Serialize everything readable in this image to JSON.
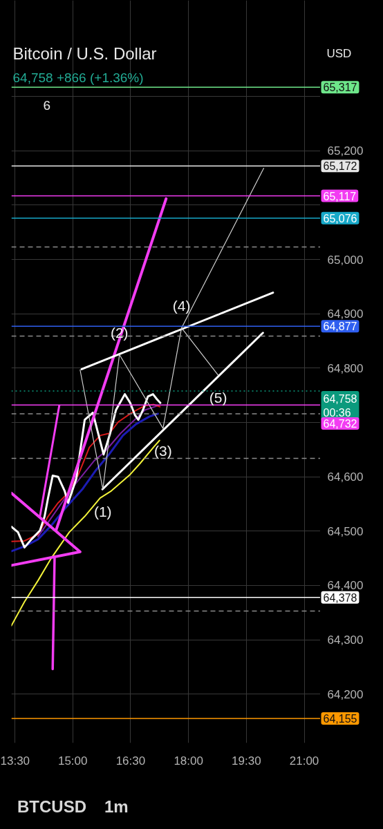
{
  "chart_data": {
    "type": "line",
    "title": "Bitcoin / U.S. Dollar",
    "subtitle": "64,758  +866 (+1.36%)",
    "annotations": [
      "6",
      "USD",
      "BTCUSD",
      "1m",
      {
        "text": "(1)",
        "x": 15.78,
        "y": 64577
      },
      {
        "text": "(2)",
        "x": 16.21,
        "y": 64825
      },
      {
        "text": "(3)",
        "x": 17.34,
        "y": 64689
      },
      {
        "text": "(4)",
        "x": 17.82,
        "y": 64874
      },
      {
        "text": "(5)",
        "x": 18.77,
        "y": 64787
      }
    ],
    "xlim": [
      13.41,
      21.42
    ],
    "xticks": [
      {
        "value": 13.5,
        "label": "13:30"
      },
      {
        "value": 15,
        "label": "15:00"
      },
      {
        "value": 16.5,
        "label": "16:30"
      },
      {
        "value": 18,
        "label": "18:00"
      },
      {
        "value": 19.5,
        "label": "19:30"
      },
      {
        "value": 21,
        "label": "21:00"
      }
    ],
    "ylim": [
      64110,
      65477
    ],
    "yticks": [
      {
        "value": 64200,
        "label": "64,200"
      },
      {
        "value": 64300,
        "label": "64,300"
      },
      {
        "value": 64400,
        "label": "64,400"
      },
      {
        "value": 64500,
        "label": "64,500"
      },
      {
        "value": 64600,
        "label": "64,600"
      },
      {
        "value": 64700,
        "label": null
      },
      {
        "value": 64800,
        "label": "64,800"
      },
      {
        "value": 64900,
        "label": "64,900"
      },
      {
        "value": 65000,
        "label": "65,000"
      },
      {
        "value": 65100,
        "label": null
      },
      {
        "value": 65200,
        "label": "65,200"
      },
      {
        "value": 65300,
        "label": null
      }
    ],
    "grid": true,
    "line_style": "solid",
    "series": [
      {
        "color": "#f2f23a",
        "x": [
          13.41,
          13.75,
          14.1,
          14.45,
          14.91,
          15.31,
          15.71,
          16.0,
          16.47,
          16.75,
          17.09,
          17.25
        ],
        "values": [
          64326,
          64370,
          64409,
          64451,
          64498,
          64527,
          64561,
          64574,
          64603,
          64625,
          64654,
          64667
        ]
      },
      {
        "color": "#1c1cb4",
        "x": [
          13.41,
          13.75,
          14.1,
          14.44,
          14.84,
          15.26,
          15.6,
          15.95,
          16.3,
          16.64,
          16.99,
          17.21
        ],
        "values": [
          64463,
          64472,
          64485,
          64510,
          64545,
          64578,
          64612,
          64642,
          64676,
          64697,
          64711,
          64716
        ]
      },
      {
        "color": "#7a1fa0",
        "x": [
          14.1,
          14.4,
          14.97,
          15.55,
          15.83,
          16.24,
          16.87,
          17.21
        ],
        "values": [
          64490,
          64520,
          64578,
          64629,
          64646,
          64680,
          64723,
          64731
        ]
      },
      {
        "color": "#d81b1b",
        "x": [
          13.41,
          13.75,
          14.1,
          14.36,
          14.62,
          14.85,
          15.14,
          15.43,
          15.71,
          15.95,
          16.18,
          16.53,
          16.87,
          17.1,
          17.26
        ],
        "values": [
          64481,
          64482,
          64494,
          64527,
          64552,
          64568,
          64603,
          64654,
          64676,
          64680,
          64701,
          64718,
          64731,
          64733,
          64729
        ]
      },
      {
        "color": "#ffffff",
        "x": [
          13.41,
          13.58,
          13.75,
          13.93,
          14.15,
          14.27,
          14.36,
          14.48,
          14.62,
          14.79,
          14.88,
          15.09,
          15.31,
          15.52,
          15.8,
          15.97,
          16.12,
          16.35,
          16.49,
          16.61,
          16.7,
          16.82,
          16.95,
          17.08,
          17.18,
          17.27
        ],
        "values": [
          64508,
          64498,
          64470,
          64485,
          64501,
          64527,
          64561,
          64602,
          64600,
          64574,
          64552,
          64596,
          64705,
          64718,
          64641,
          64680,
          64723,
          64752,
          64736,
          64714,
          64705,
          64723,
          64748,
          64752,
          64743,
          64736
        ]
      },
      {
        "color": "#f23cf2",
        "x": [
          13.41,
          15.19,
          13.41
        ],
        "values": [
          64570,
          64462,
          64437
        ]
      },
      {
        "color": "#f23cf2",
        "x": [
          14.53,
          14.48
        ],
        "values": [
          64453,
          64246
        ]
      },
      {
        "color": "#f23cf2",
        "x": [
          14.65,
          14.15
        ],
        "values": [
          64731,
          64527
        ]
      },
      {
        "color": "#f23cf2",
        "x": [
          14.57,
          17.42
        ],
        "values": [
          64502,
          65112
        ]
      },
      {
        "color": "#ffffff",
        "x": [
          15.23,
          20.19
        ],
        "values": [
          64798,
          64939
        ]
      },
      {
        "color": "#ffffff",
        "x": [
          15.77,
          19.93
        ],
        "values": [
          64577,
          64865
        ]
      },
      {
        "color": "#d0d0d0",
        "x": [
          15.19,
          15.78,
          16.21,
          17.34,
          17.82,
          18.77
        ],
        "values": [
          64797,
          64577,
          64825,
          64689,
          64874,
          64787
        ]
      },
      {
        "color": "#d0d0d0",
        "x": [
          17.82,
          19.95
        ],
        "values": [
          64874,
          65168
        ]
      }
    ],
    "ref_lines": [
      {
        "axis": "y",
        "value": 65317,
        "label": "65,317",
        "color": "#6ee68a"
      },
      {
        "axis": "y",
        "value": 65172,
        "label": "65,172",
        "color": "#e6e6e6"
      },
      {
        "axis": "y",
        "value": 65117,
        "label": "65,117",
        "color": "#f23cf2"
      },
      {
        "axis": "y",
        "value": 65076,
        "label": "65,076",
        "color": "#17a9c9"
      },
      {
        "axis": "y",
        "value": 65023,
        "color": "#8c8c8c",
        "line_style": "dashed"
      },
      {
        "axis": "y",
        "value": 64877,
        "label": "64,877",
        "color": "#2f5ff0"
      },
      {
        "axis": "y",
        "value": 64859,
        "color": "#8c8c8c",
        "line_style": "dashed"
      },
      {
        "axis": "y",
        "value": 64758,
        "label": "64,758\n00:36",
        "color": "#0b9a7d",
        "line_style": "dotted"
      },
      {
        "axis": "y",
        "value": 64732,
        "label": "64,732",
        "color": "#f23cf2"
      },
      {
        "axis": "y",
        "value": 64716,
        "color": "#8c8c8c",
        "line_style": "dashed"
      },
      {
        "axis": "y",
        "value": 64634,
        "color": "#8c8c8c",
        "line_style": "dashed"
      },
      {
        "axis": "y",
        "value": 64378,
        "label": "64,378",
        "color": "#ffffff"
      },
      {
        "axis": "y",
        "value": 64353,
        "color": "#8c8c8c",
        "line_style": "dashed"
      },
      {
        "axis": "y",
        "value": 64155,
        "label": "64,155",
        "color": "#ff9800"
      }
    ]
  }
}
